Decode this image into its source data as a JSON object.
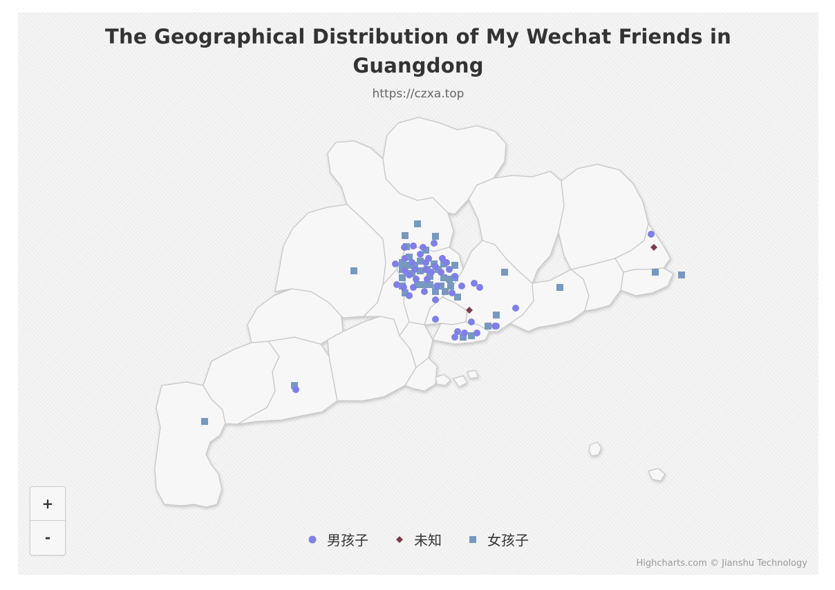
{
  "title": {
    "line1": "The Geographical Distribution of My Wechat Friends in",
    "line2": "Guangdong"
  },
  "subtitle": "https://czxa.top",
  "zoom": {
    "in_label": "+",
    "out_label": "-"
  },
  "credits": "Highcharts.com © Jianshu Technology",
  "colors": {
    "boy": "#7f7fe6",
    "unknown": "#7e3b4a",
    "girl": "#7798bf",
    "region_fill": "#f7f7f7",
    "region_stroke": "#c8c8c8"
  },
  "legend": [
    {
      "series": "boy",
      "label": "男孩子",
      "marker": "circle"
    },
    {
      "series": "unknown",
      "label": "未知",
      "marker": "diamond"
    },
    {
      "series": "girl",
      "label": "女孩子",
      "marker": "square"
    }
  ],
  "chart_data": {
    "type": "scatter",
    "map": "Guangdong",
    "series": [
      {
        "name": "男孩子",
        "marker": "circle",
        "count": 45
      },
      {
        "name": "未知",
        "marker": "diamond",
        "count": 2
      },
      {
        "name": "女孩子",
        "marker": "square",
        "count": 44
      }
    ]
  }
}
